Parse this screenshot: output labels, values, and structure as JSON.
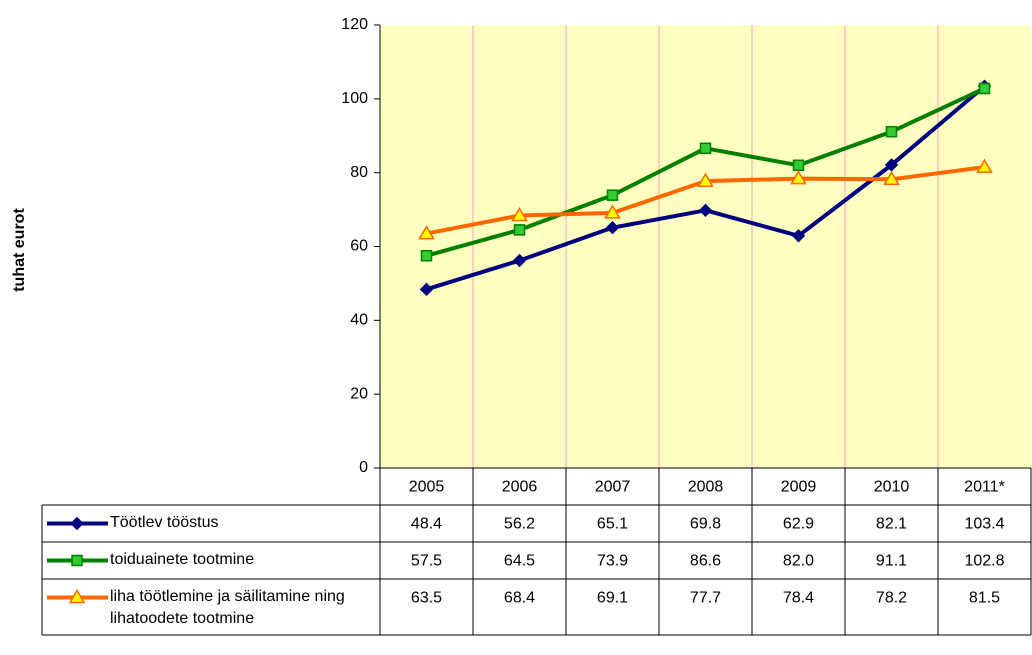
{
  "chart_data": {
    "type": "line",
    "ylabel": "tuhat eurot",
    "categories": [
      "2005",
      "2006",
      "2007",
      "2008",
      "2009",
      "2010",
      "2011*"
    ],
    "series": [
      {
        "name": "Töötlev tööstus",
        "color": "#000080",
        "marker": "diamond",
        "values": [
          48.4,
          56.2,
          65.1,
          69.8,
          62.9,
          82.1,
          103.4
        ],
        "value_labels": [
          "48.4",
          "56.2",
          "65.1",
          "69.8",
          "62.9",
          "82.1",
          "103.4"
        ]
      },
      {
        "name": "toiduainete tootmine",
        "color": "#008000",
        "marker": "square",
        "values": [
          57.5,
          64.5,
          73.9,
          86.6,
          82,
          91.1,
          102.8
        ],
        "value_labels": [
          "57.5",
          "64.5",
          "73.9",
          "86.6",
          "82.0",
          "91.1",
          "102.8"
        ]
      },
      {
        "name": "liha töötlemine ja säilitamine ning lihatoodete tootmine",
        "color": "#ff6600",
        "marker": "triangle",
        "values": [
          63.5,
          68.4,
          69.1,
          77.7,
          78.4,
          78.2,
          81.5
        ],
        "value_labels": [
          "63.5",
          "68.4",
          "69.1",
          "77.7",
          "78.4",
          "78.2",
          "81.5"
        ]
      }
    ],
    "ylim": [
      0,
      120
    ],
    "yticks": [
      0,
      20,
      40,
      60,
      80,
      100,
      120
    ]
  }
}
